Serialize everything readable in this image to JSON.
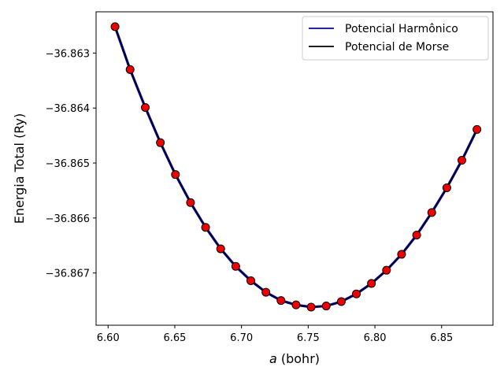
{
  "chart_data": {
    "type": "line",
    "xlabel_var": "a",
    "xlabel_unit": " (bohr)",
    "ylabel": "Energia Total (Ry)",
    "xlim": [
      6.591,
      6.8885
    ],
    "ylim": [
      -36.86795,
      -36.86225
    ],
    "xticks": [
      6.6,
      6.65,
      6.7,
      6.75,
      6.8,
      6.85
    ],
    "xtick_labels": [
      "6.60",
      "6.65",
      "6.70",
      "6.75",
      "6.80",
      "6.85"
    ],
    "yticks": [
      -36.863,
      -36.864,
      -36.865,
      -36.866,
      -36.867
    ],
    "ytick_labels": [
      "−36.863",
      "−36.864",
      "−36.865",
      "−36.866",
      "−36.867"
    ],
    "legend_position": "top-right",
    "grid": false,
    "x": [
      6.6052,
      6.6165,
      6.6279,
      6.6392,
      6.6505,
      6.6618,
      6.6731,
      6.6844,
      6.6957,
      6.707,
      6.7183,
      6.7296,
      6.7409,
      6.7522,
      6.7635,
      6.7748,
      6.7861,
      6.7974,
      6.8087,
      6.82,
      6.8313,
      6.8426,
      6.8539,
      6.8652,
      6.8765
    ],
    "points": [
      -36.86252,
      -36.8633,
      -36.86399,
      -36.86463,
      -36.86521,
      -36.86572,
      -36.86617,
      -36.86656,
      -36.86688,
      -36.86714,
      -36.86735,
      -36.8675,
      -36.86758,
      -36.86762,
      -36.8676,
      -36.86752,
      -36.86738,
      -36.86719,
      -36.86695,
      -36.86666,
      -36.86631,
      -36.8659,
      -36.86545,
      -36.86495,
      -36.86439
    ],
    "series": [
      {
        "name": "Potencial Harmônico",
        "color": "#0000cc",
        "values": [
          -36.86252,
          -36.8633,
          -36.86399,
          -36.86463,
          -36.86521,
          -36.86572,
          -36.86617,
          -36.86656,
          -36.86688,
          -36.86714,
          -36.86735,
          -36.8675,
          -36.86758,
          -36.86762,
          -36.8676,
          -36.86752,
          -36.86738,
          -36.86719,
          -36.86695,
          -36.86666,
          -36.86631,
          -36.8659,
          -36.86545,
          -36.86495,
          -36.86439
        ]
      },
      {
        "name": "Potencial de Morse",
        "color": "#000000",
        "values": [
          -36.86252,
          -36.8633,
          -36.86399,
          -36.86463,
          -36.86521,
          -36.86572,
          -36.86617,
          -36.86656,
          -36.86688,
          -36.86714,
          -36.86735,
          -36.8675,
          -36.86758,
          -36.86762,
          -36.8676,
          -36.86752,
          -36.86738,
          -36.86719,
          -36.86695,
          -36.86666,
          -36.86631,
          -36.8659,
          -36.86545,
          -36.86495,
          -36.86439
        ]
      }
    ],
    "marker_color": "#ee0000"
  }
}
